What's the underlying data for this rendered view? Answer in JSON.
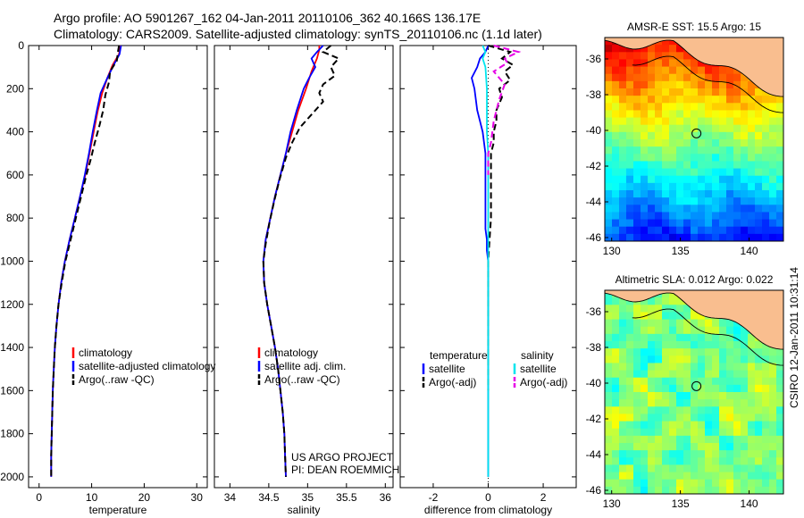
{
  "header": {
    "line1": "Argo profile: AO 5901267_162 04-Jan-2011 20110106_362 40.166S 136.17E",
    "line2": "Climatology: CARS2009. Satellite-adjusted climatology: synTS_20110106.nc (1.1d later)"
  },
  "colors": {
    "red": "#ff0000",
    "blue": "#0000ff",
    "black": "#000000",
    "cyan": "#00e5ee",
    "magenta": "#e600e6",
    "land": "#f9be8f"
  },
  "chart_data": [
    {
      "type": "line",
      "xlabel": "temperature",
      "ylabel": "",
      "xlim": [
        -2,
        32
      ],
      "ylim": [
        2050,
        0
      ],
      "xticks": [
        0,
        10,
        20,
        30
      ],
      "yticks": [
        0,
        200,
        400,
        600,
        800,
        1000,
        1200,
        1400,
        1600,
        1800,
        2000
      ],
      "legend": {
        "position": "lower-right",
        "entries": [
          "climatology",
          "satellite-adjusted climatology",
          "Argo(..raw -QC)"
        ]
      },
      "series": [
        {
          "name": "climatology",
          "color": "red",
          "dash": "solid",
          "points": [
            [
              15.5,
              0
            ],
            [
              15.2,
              40
            ],
            [
              14.0,
              90
            ],
            [
              13.0,
              150
            ],
            [
              12.0,
              220
            ],
            [
              11.2,
              300
            ],
            [
              10.4,
              400
            ],
            [
              9.6,
              500
            ],
            [
              8.8,
              600
            ],
            [
              7.8,
              700
            ],
            [
              6.8,
              800
            ],
            [
              5.8,
              900
            ],
            [
              4.9,
              1000
            ],
            [
              4.2,
              1100
            ],
            [
              3.7,
              1200
            ],
            [
              3.3,
              1300
            ],
            [
              3.0,
              1400
            ],
            [
              2.8,
              1500
            ],
            [
              2.6,
              1600
            ],
            [
              2.5,
              1700
            ],
            [
              2.4,
              1800
            ],
            [
              2.3,
              1900
            ],
            [
              2.3,
              2000
            ]
          ]
        },
        {
          "name": "satellite-adjusted climatology",
          "color": "blue",
          "dash": "solid",
          "points": [
            [
              15.6,
              0
            ],
            [
              15.3,
              40
            ],
            [
              14.2,
              90
            ],
            [
              13.0,
              150
            ],
            [
              11.7,
              220
            ],
            [
              11.0,
              300
            ],
            [
              10.2,
              400
            ],
            [
              9.5,
              500
            ],
            [
              8.7,
              600
            ],
            [
              7.8,
              700
            ],
            [
              6.8,
              800
            ],
            [
              5.8,
              900
            ],
            [
              4.9,
              1000
            ],
            [
              4.2,
              1100
            ],
            [
              3.7,
              1200
            ],
            [
              3.3,
              1300
            ],
            [
              3.0,
              1400
            ],
            [
              2.8,
              1500
            ],
            [
              2.6,
              1600
            ],
            [
              2.5,
              1700
            ],
            [
              2.4,
              1800
            ],
            [
              2.3,
              1900
            ],
            [
              2.3,
              2000
            ]
          ]
        },
        {
          "name": "Argo(..raw -QC)",
          "color": "black",
          "dash": "dashed",
          "points": [
            [
              15.2,
              0
            ],
            [
              15.0,
              30
            ],
            [
              14.8,
              70
            ],
            [
              13.5,
              120
            ],
            [
              13.3,
              170
            ],
            [
              12.6,
              230
            ],
            [
              12.2,
              300
            ],
            [
              11.5,
              370
            ],
            [
              10.6,
              450
            ],
            [
              9.8,
              530
            ],
            [
              9.0,
              600
            ],
            [
              8.0,
              700
            ],
            [
              7.0,
              800
            ],
            [
              6.0,
              900
            ],
            [
              5.0,
              1000
            ],
            [
              4.3,
              1100
            ],
            [
              3.7,
              1200
            ],
            [
              3.3,
              1300
            ],
            [
              3.0,
              1400
            ],
            [
              2.8,
              1500
            ],
            [
              2.6,
              1600
            ],
            [
              2.5,
              1700
            ],
            [
              2.4,
              1800
            ],
            [
              2.3,
              1900
            ],
            [
              2.3,
              2000
            ]
          ]
        }
      ]
    },
    {
      "type": "line",
      "xlabel": "salinity",
      "ylabel": "",
      "xlim": [
        33.8,
        36.1
      ],
      "ylim": [
        2050,
        0
      ],
      "xticks": [
        34,
        34.5,
        35,
        35.5,
        36
      ],
      "yticks": [],
      "legend": {
        "position": "lower-right",
        "entries": [
          "climatology",
          "satellite adj. clim.",
          "Argo(..raw -QC)"
        ]
      },
      "annotation": [
        "US ARGO PROJECT",
        "PI: DEAN ROEMMICH"
      ],
      "series": [
        {
          "name": "climatology",
          "color": "red",
          "dash": "solid",
          "points": [
            [
              35.15,
              0
            ],
            [
              35.15,
              20
            ],
            [
              35.12,
              60
            ],
            [
              35.05,
              120
            ],
            [
              34.98,
              200
            ],
            [
              34.88,
              300
            ],
            [
              34.8,
              400
            ],
            [
              34.72,
              500
            ],
            [
              34.65,
              600
            ],
            [
              34.58,
              700
            ],
            [
              34.52,
              800
            ],
            [
              34.46,
              900
            ],
            [
              34.43,
              1000
            ],
            [
              34.44,
              1100
            ],
            [
              34.48,
              1200
            ],
            [
              34.53,
              1300
            ],
            [
              34.58,
              1400
            ],
            [
              34.62,
              1500
            ],
            [
              34.65,
              1600
            ],
            [
              34.68,
              1700
            ],
            [
              34.7,
              1800
            ],
            [
              34.71,
              1900
            ],
            [
              34.72,
              2000
            ]
          ]
        },
        {
          "name": "satellite adj. clim.",
          "color": "blue",
          "dash": "solid",
          "points": [
            [
              35.2,
              0
            ],
            [
              35.12,
              30
            ],
            [
              35.05,
              60
            ],
            [
              35.1,
              100
            ],
            [
              35.02,
              150
            ],
            [
              34.95,
              200
            ],
            [
              34.86,
              300
            ],
            [
              34.78,
              400
            ],
            [
              34.72,
              500
            ],
            [
              34.65,
              600
            ],
            [
              34.58,
              700
            ],
            [
              34.52,
              800
            ],
            [
              34.46,
              900
            ],
            [
              34.43,
              1000
            ],
            [
              34.44,
              1100
            ],
            [
              34.48,
              1200
            ],
            [
              34.53,
              1300
            ],
            [
              34.58,
              1400
            ],
            [
              34.62,
              1500
            ],
            [
              34.65,
              1600
            ],
            [
              34.68,
              1700
            ],
            [
              34.7,
              1800
            ],
            [
              34.71,
              1900
            ],
            [
              34.72,
              2000
            ]
          ]
        },
        {
          "name": "Argo(..raw -QC)",
          "color": "black",
          "dash": "dashed",
          "points": [
            [
              35.3,
              0
            ],
            [
              35.2,
              30
            ],
            [
              35.4,
              60
            ],
            [
              35.3,
              100
            ],
            [
              35.35,
              140
            ],
            [
              35.2,
              180
            ],
            [
              35.15,
              220
            ],
            [
              35.2,
              260
            ],
            [
              35.05,
              320
            ],
            [
              34.9,
              380
            ],
            [
              34.8,
              450
            ],
            [
              34.72,
              520
            ],
            [
              34.64,
              620
            ],
            [
              34.57,
              720
            ],
            [
              34.51,
              820
            ],
            [
              34.46,
              920
            ],
            [
              34.43,
              1000
            ],
            [
              34.44,
              1100
            ],
            [
              34.48,
              1200
            ],
            [
              34.53,
              1300
            ],
            [
              34.58,
              1400
            ],
            [
              34.62,
              1500
            ],
            [
              34.65,
              1600
            ],
            [
              34.68,
              1700
            ],
            [
              34.7,
              1800
            ],
            [
              34.71,
              1900
            ],
            [
              34.72,
              2000
            ]
          ]
        }
      ]
    },
    {
      "type": "line",
      "xlabel": "difference from climatology",
      "ylabel": "",
      "xlim": [
        -3.2,
        3.2
      ],
      "ylim": [
        2050,
        0
      ],
      "xticks": [
        -2,
        0,
        2
      ],
      "yticks": [],
      "zero_line": "dotted",
      "legend": {
        "position": "lower-center",
        "headers": [
          "temperature",
          "salinity"
        ],
        "entries": [
          "satellite",
          "Argo(-adj)",
          "satellite",
          "Argo(-adj)"
        ]
      },
      "series": [
        {
          "name": "temperature satellite",
          "color": "blue",
          "dash": "solid",
          "points": [
            [
              0.0,
              0
            ],
            [
              -0.1,
              30
            ],
            [
              -0.3,
              60
            ],
            [
              -0.4,
              100
            ],
            [
              -0.6,
              150
            ],
            [
              -0.5,
              200
            ],
            [
              -0.4,
              300
            ],
            [
              -0.2,
              400
            ],
            [
              -0.1,
              500
            ],
            [
              -0.1,
              550
            ],
            [
              -0.1,
              600
            ],
            [
              -0.1,
              650
            ],
            [
              -0.1,
              700
            ],
            [
              -0.1,
              750
            ],
            [
              -0.1,
              800
            ],
            [
              -0.1,
              850
            ],
            [
              -0.05,
              900
            ],
            [
              -0.05,
              950
            ],
            [
              0.0,
              1000
            ],
            [
              0.0,
              1200
            ],
            [
              0.0,
              1400
            ],
            [
              0.0,
              1600
            ],
            [
              0.0,
              1800
            ],
            [
              0.0,
              2000
            ]
          ]
        },
        {
          "name": "temperature Argo(-adj)",
          "color": "black",
          "dash": "dashed",
          "points": [
            [
              0.0,
              0
            ],
            [
              0.8,
              30
            ],
            [
              0.5,
              60
            ],
            [
              0.9,
              90
            ],
            [
              0.6,
              120
            ],
            [
              0.8,
              160
            ],
            [
              0.4,
              200
            ],
            [
              0.5,
              240
            ],
            [
              0.3,
              300
            ],
            [
              0.3,
              350
            ],
            [
              0.2,
              400
            ],
            [
              0.2,
              450
            ],
            [
              0.1,
              500
            ],
            [
              0.1,
              600
            ],
            [
              0.1,
              700
            ],
            [
              0.1,
              800
            ],
            [
              0.05,
              900
            ],
            [
              0.0,
              1000
            ],
            [
              0.0,
              1200
            ],
            [
              0.0,
              1400
            ],
            [
              0.0,
              1600
            ]
          ]
        },
        {
          "name": "salinity satellite",
          "color": "cyan",
          "dash": "solid",
          "points": [
            [
              -0.2,
              0
            ],
            [
              -0.1,
              30
            ],
            [
              -0.2,
              60
            ],
            [
              -0.1,
              100
            ],
            [
              -0.05,
              200
            ],
            [
              -0.05,
              300
            ],
            [
              -0.05,
              400
            ],
            [
              0.0,
              500
            ],
            [
              0.0,
              1000
            ],
            [
              0.0,
              1500
            ],
            [
              0.0,
              2000
            ]
          ]
        },
        {
          "name": "salinity Argo(-adj)",
          "color": "magenta",
          "dash": "dashed",
          "points": [
            [
              0.2,
              0
            ],
            [
              1.1,
              30
            ],
            [
              0.6,
              60
            ],
            [
              0.7,
              80
            ],
            [
              0.2,
              120
            ],
            [
              0.6,
              180
            ],
            [
              0.4,
              250
            ],
            [
              0.2,
              350
            ],
            [
              0.1,
              450
            ],
            [
              0.0,
              500
            ],
            [
              0.0,
              600
            ]
          ]
        }
      ]
    },
    {
      "type": "heatmap",
      "title": "AMSR-E SST: 15.5 Argo: 15",
      "xlim": [
        129.5,
        142.5
      ],
      "ylim": [
        -46.2,
        -34.8
      ],
      "xticks": [
        130,
        135,
        140
      ],
      "yticks": [
        -36,
        -38,
        -40,
        -42,
        -44,
        -46
      ],
      "colormap": "jet",
      "marker": {
        "lon": 136.17,
        "lat": -40.166
      }
    },
    {
      "type": "heatmap",
      "title": "Altimetric SLA: 0.012 Argo: 0.022",
      "xlim": [
        129.5,
        142.5
      ],
      "ylim": [
        -46.2,
        -34.8
      ],
      "xticks": [
        130,
        135,
        140
      ],
      "yticks": [
        -36,
        -38,
        -40,
        -42,
        -44,
        -46
      ],
      "colormap": "jet",
      "marker": {
        "lon": 136.17,
        "lat": -40.166
      }
    }
  ],
  "side_stamp": "CSIRO 12-Jan-2011 10:31:14"
}
